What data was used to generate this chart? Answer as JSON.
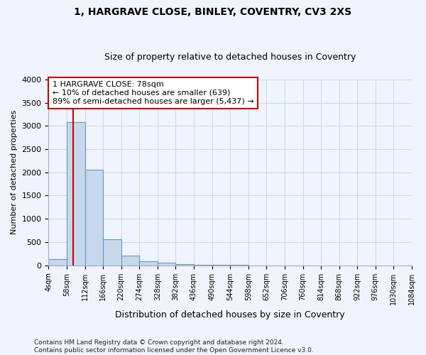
{
  "title": "1, HARGRAVE CLOSE, BINLEY, COVENTRY, CV3 2XS",
  "subtitle": "Size of property relative to detached houses in Coventry",
  "xlabel": "Distribution of detached houses by size in Coventry",
  "ylabel": "Number of detached properties",
  "bin_edges": [
    4,
    58,
    112,
    166,
    220,
    274,
    328,
    382,
    436,
    490,
    544,
    598,
    652,
    706,
    760,
    814,
    868,
    922,
    976,
    1030,
    1084
  ],
  "bar_heights": [
    130,
    3080,
    2060,
    560,
    205,
    80,
    55,
    30,
    10,
    5,
    3,
    2,
    1,
    1,
    0,
    0,
    0,
    0,
    0,
    0
  ],
  "bar_color": "#c8d8ec",
  "bar_edge_color": "#6699bb",
  "property_size": 78,
  "property_line_color": "#cc0000",
  "annotation_line1": "1 HARGRAVE CLOSE: 78sqm",
  "annotation_line2": "← 10% of detached houses are smaller (639)",
  "annotation_line3": "89% of semi-detached houses are larger (5,437) →",
  "annotation_box_color": "#cc0000",
  "annotation_box_fill": "#ffffff",
  "ylim": [
    0,
    4000
  ],
  "yticks": [
    0,
    500,
    1000,
    1500,
    2000,
    2500,
    3000,
    3500,
    4000
  ],
  "grid_color": "#d0d8ec",
  "footer_line1": "Contains HM Land Registry data © Crown copyright and database right 2024.",
  "footer_line2": "Contains public sector information licensed under the Open Government Licence v3.0.",
  "bg_color": "#f0f4ff",
  "title_fontsize": 10,
  "subtitle_fontsize": 9
}
